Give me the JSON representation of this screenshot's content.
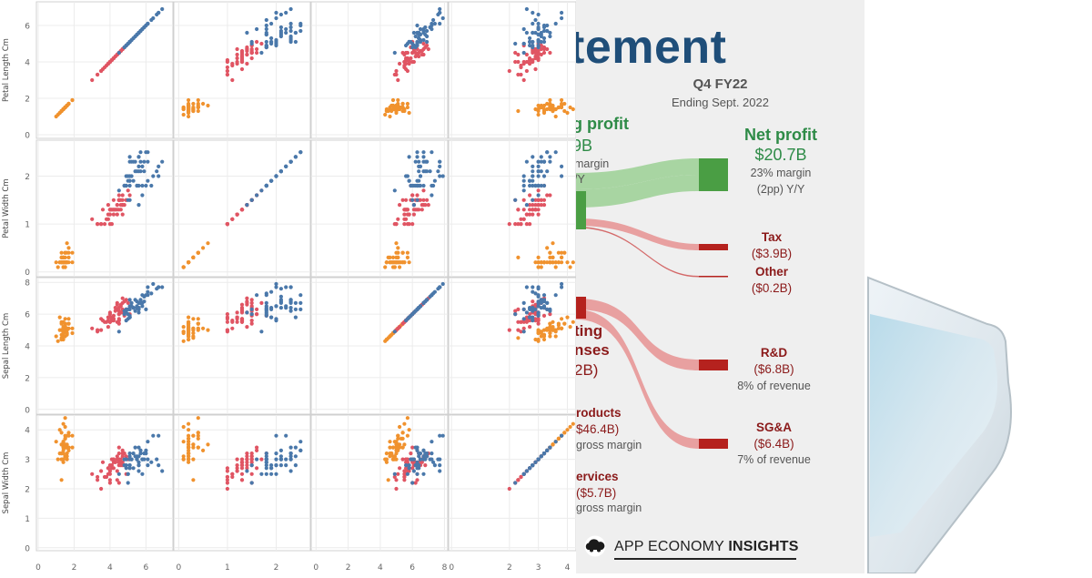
{
  "chart_data": {
    "type": "scatter",
    "variables": [
      "Petal Length Cm",
      "Petal Width Cm",
      "Sepal Length Cm",
      "Sepal Width Cm"
    ],
    "grid": true,
    "x_tick_labels": [
      [
        "0",
        "2",
        "4",
        "6"
      ],
      [
        "0",
        "1",
        "2"
      ],
      [
        "0",
        "2",
        "4",
        "6",
        "8"
      ],
      [
        "0",
        "2",
        "3",
        "4"
      ]
    ],
    "y_tick_labels": [
      [
        "0",
        "2",
        "4",
        "6"
      ],
      [
        "0",
        "1",
        "2"
      ],
      [
        "0",
        "2",
        "4",
        "6",
        "8"
      ],
      [
        "0",
        "1",
        "2",
        "3",
        "4"
      ]
    ],
    "colors": {
      "setosa": "#f0922e",
      "versicolor": "#e05563",
      "virginica": "#4a78aa"
    },
    "groups": [
      {
        "color": "setosa",
        "sepal_length": [
          5.1,
          4.9,
          4.7,
          4.6,
          5.0,
          5.4,
          4.6,
          5.0,
          4.4,
          4.9,
          5.4,
          4.8,
          4.8,
          4.3,
          5.8,
          5.7,
          5.4,
          5.1,
          5.7,
          5.1,
          5.4,
          5.1,
          4.6,
          5.1,
          4.8,
          5.0,
          5.0,
          5.2,
          5.2,
          4.7,
          4.8,
          5.4,
          5.2,
          5.5,
          4.9,
          5.0,
          5.5,
          4.9,
          4.4,
          5.1,
          5.0,
          4.5,
          4.4,
          5.0,
          5.1,
          4.8,
          5.1,
          4.6,
          5.3,
          5.0
        ],
        "sepal_width": [
          3.5,
          3.0,
          3.2,
          3.1,
          3.6,
          3.9,
          3.4,
          3.4,
          2.9,
          3.1,
          3.7,
          3.4,
          3.0,
          3.0,
          4.0,
          4.4,
          3.9,
          3.5,
          3.8,
          3.8,
          3.4,
          3.7,
          3.6,
          3.3,
          3.4,
          3.0,
          3.4,
          3.5,
          3.4,
          3.2,
          3.1,
          3.4,
          4.1,
          4.2,
          3.1,
          3.2,
          3.5,
          3.6,
          3.0,
          3.4,
          3.5,
          2.3,
          3.2,
          3.5,
          3.8,
          3.0,
          3.8,
          3.2,
          3.7,
          3.3
        ],
        "petal_length": [
          1.4,
          1.4,
          1.3,
          1.5,
          1.4,
          1.7,
          1.4,
          1.5,
          1.4,
          1.5,
          1.5,
          1.6,
          1.4,
          1.1,
          1.2,
          1.5,
          1.3,
          1.4,
          1.7,
          1.5,
          1.7,
          1.5,
          1.0,
          1.7,
          1.9,
          1.6,
          1.6,
          1.5,
          1.4,
          1.6,
          1.6,
          1.5,
          1.5,
          1.4,
          1.5,
          1.2,
          1.3,
          1.4,
          1.3,
          1.5,
          1.3,
          1.3,
          1.3,
          1.6,
          1.9,
          1.4,
          1.6,
          1.4,
          1.5,
          1.4
        ],
        "petal_width": [
          0.2,
          0.2,
          0.2,
          0.2,
          0.2,
          0.4,
          0.3,
          0.2,
          0.2,
          0.1,
          0.2,
          0.2,
          0.1,
          0.1,
          0.2,
          0.4,
          0.4,
          0.3,
          0.3,
          0.3,
          0.2,
          0.4,
          0.2,
          0.5,
          0.2,
          0.2,
          0.4,
          0.2,
          0.2,
          0.2,
          0.2,
          0.4,
          0.1,
          0.2,
          0.2,
          0.2,
          0.2,
          0.1,
          0.2,
          0.2,
          0.3,
          0.3,
          0.2,
          0.6,
          0.4,
          0.3,
          0.2,
          0.2,
          0.2,
          0.2
        ]
      },
      {
        "color": "versicolor",
        "sepal_length": [
          7.0,
          6.4,
          6.9,
          5.5,
          6.5,
          5.7,
          6.3,
          4.9,
          6.6,
          5.2,
          5.0,
          5.9,
          6.0,
          6.1,
          5.6,
          6.7,
          5.6,
          5.8,
          6.2,
          5.6,
          5.9,
          6.1,
          6.3,
          6.1,
          6.4,
          6.6,
          6.8,
          6.7,
          6.0,
          5.7,
          5.5,
          5.5,
          5.8,
          6.0,
          5.4,
          6.0,
          6.7,
          6.3,
          5.6,
          5.5,
          5.5,
          6.1,
          5.8,
          5.0,
          5.6,
          5.7,
          5.7,
          6.2,
          5.1,
          5.7
        ],
        "sepal_width": [
          3.2,
          3.2,
          3.1,
          2.3,
          2.8,
          2.8,
          3.3,
          2.4,
          2.9,
          2.7,
          2.0,
          3.0,
          2.2,
          2.9,
          2.9,
          3.1,
          3.0,
          2.7,
          2.2,
          2.5,
          3.2,
          2.8,
          2.5,
          2.8,
          2.9,
          3.0,
          2.8,
          3.0,
          2.9,
          2.6,
          2.4,
          2.4,
          2.7,
          2.7,
          3.0,
          3.4,
          3.1,
          2.3,
          3.0,
          2.5,
          2.6,
          3.0,
          2.6,
          2.3,
          2.7,
          3.0,
          2.9,
          2.9,
          2.5,
          2.8
        ],
        "petal_length": [
          4.7,
          4.5,
          4.9,
          4.0,
          4.6,
          4.5,
          4.7,
          3.3,
          4.6,
          3.9,
          3.5,
          4.2,
          4.0,
          4.7,
          3.6,
          4.4,
          4.5,
          4.1,
          4.5,
          3.9,
          4.8,
          4.0,
          4.9,
          4.7,
          4.3,
          4.4,
          4.8,
          5.0,
          4.5,
          3.5,
          3.8,
          3.7,
          3.9,
          5.1,
          4.5,
          4.5,
          4.7,
          4.4,
          4.1,
          4.0,
          4.4,
          4.6,
          4.0,
          3.3,
          4.2,
          4.2,
          4.2,
          4.3,
          3.0,
          4.1
        ],
        "petal_width": [
          1.4,
          1.5,
          1.5,
          1.3,
          1.5,
          1.3,
          1.6,
          1.0,
          1.3,
          1.4,
          1.0,
          1.5,
          1.0,
          1.4,
          1.3,
          1.4,
          1.5,
          1.0,
          1.5,
          1.1,
          1.8,
          1.3,
          1.5,
          1.2,
          1.3,
          1.4,
          1.4,
          1.7,
          1.5,
          1.0,
          1.1,
          1.0,
          1.2,
          1.6,
          1.5,
          1.6,
          1.5,
          1.3,
          1.3,
          1.3,
          1.2,
          1.4,
          1.2,
          1.0,
          1.3,
          1.2,
          1.3,
          1.3,
          1.1,
          1.3
        ]
      },
      {
        "color": "virginica",
        "sepal_length": [
          6.3,
          5.8,
          7.1,
          6.3,
          6.5,
          7.6,
          4.9,
          7.3,
          6.7,
          7.2,
          6.5,
          6.4,
          6.8,
          5.7,
          5.8,
          6.4,
          6.5,
          7.7,
          7.7,
          6.0,
          6.9,
          5.6,
          7.7,
          6.3,
          6.7,
          7.2,
          6.2,
          6.1,
          6.4,
          7.2,
          7.4,
          7.9,
          6.4,
          6.3,
          6.1,
          7.7,
          6.3,
          6.4,
          6.0,
          6.9,
          6.7,
          6.9,
          5.8,
          6.8,
          6.7,
          6.7,
          6.3,
          6.5,
          6.2,
          5.9
        ],
        "sepal_width": [
          3.3,
          2.7,
          3.0,
          2.9,
          3.0,
          3.0,
          2.5,
          2.9,
          2.5,
          3.6,
          3.2,
          2.7,
          3.0,
          2.5,
          2.8,
          3.2,
          3.0,
          3.8,
          2.6,
          2.2,
          3.2,
          2.8,
          2.8,
          2.7,
          3.3,
          3.2,
          2.8,
          3.0,
          2.8,
          3.0,
          2.8,
          3.8,
          2.8,
          2.8,
          2.6,
          3.0,
          3.4,
          3.1,
          3.0,
          3.1,
          3.1,
          3.1,
          2.7,
          3.2,
          3.3,
          3.0,
          2.5,
          3.0,
          3.4,
          3.0
        ],
        "petal_length": [
          6.0,
          5.1,
          5.9,
          5.6,
          5.8,
          6.6,
          4.5,
          6.3,
          5.8,
          6.1,
          5.1,
          5.3,
          5.5,
          5.0,
          5.1,
          5.3,
          5.5,
          6.7,
          6.9,
          5.0,
          5.7,
          4.9,
          6.7,
          4.9,
          5.7,
          6.0,
          4.8,
          4.9,
          5.6,
          5.8,
          6.1,
          6.4,
          5.6,
          5.1,
          5.6,
          6.1,
          5.6,
          5.5,
          4.8,
          5.4,
          5.6,
          5.1,
          5.1,
          5.9,
          5.7,
          5.2,
          5.0,
          5.2,
          5.4,
          5.1
        ],
        "petal_width": [
          2.5,
          1.9,
          2.1,
          1.8,
          2.2,
          2.1,
          1.7,
          1.8,
          1.8,
          2.5,
          2.0,
          1.9,
          2.1,
          2.0,
          2.4,
          2.3,
          1.8,
          2.2,
          2.3,
          1.5,
          2.3,
          2.0,
          2.0,
          1.8,
          2.1,
          1.8,
          1.8,
          1.8,
          2.1,
          1.6,
          1.9,
          2.0,
          2.2,
          1.5,
          1.4,
          2.3,
          2.4,
          1.8,
          1.8,
          2.1,
          2.4,
          2.3,
          1.9,
          2.3,
          2.5,
          2.3,
          1.9,
          2.0,
          2.3,
          1.8
        ]
      }
    ]
  },
  "statement": {
    "title_partial": "tement",
    "period": "Q4 FY22",
    "ending": "Ending Sept. 2022",
    "op_profit_partial": "g profit",
    "op_profit_value_partial": "9B",
    "op_profit_margin_partial": "margin",
    "op_profit_yy_partial": "/Y",
    "net_profit_label": "Net profit",
    "net_profit_value": "$20.7B",
    "net_profit_margin": "23% margin",
    "net_profit_yy": "(2pp) Y/Y",
    "tax_label": "Tax",
    "tax_value": "($3.9B)",
    "other_label": "Other",
    "other_value": "($0.2B)",
    "opex_line1_partial": "ting",
    "opex_line2_partial": "nses",
    "opex_value_partial": "2B)",
    "rd_label": "R&D",
    "rd_value": "($6.8B)",
    "rd_note": "8% of revenue",
    "sga_label": "SG&A",
    "sga_value": "($6.4B)",
    "sga_note": "7% of revenue",
    "products_partial": "roducts",
    "products_value": "$46.4B)",
    "products_note_partial": "gross margin",
    "services_partial": "ervices",
    "services_value": "($5.7B)",
    "services_note_partial": "gross margin",
    "brand_regular": "APP ECONOMY ",
    "brand_bold": "INSIGHTS"
  },
  "colors": {
    "title_blue": "#1f4e79",
    "green": "#2e8b47",
    "green_flow": "#a8d5a2",
    "red": "#b5221e",
    "red_flow": "#e8a0a0",
    "dark_red_text": "#8b1a1a"
  }
}
